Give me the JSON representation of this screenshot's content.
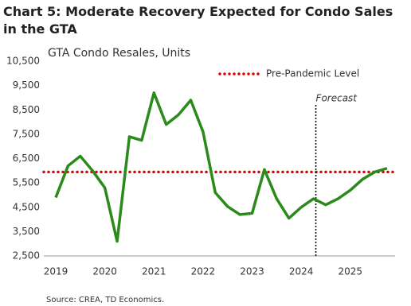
{
  "chart_data": {
    "type": "line",
    "title": "Chart 5: Moderate Recovery Expected for Condo Sales in the GTA",
    "subtitle": "GTA Condo Resales, Units",
    "source": "Source: CREA, TD Economics.",
    "categories": [
      "2019",
      null,
      null,
      null,
      "2020",
      null,
      null,
      null,
      "2021",
      null,
      null,
      null,
      "2022",
      null,
      null,
      null,
      "2023",
      null,
      null,
      null,
      "2024",
      null,
      null,
      null,
      "2025",
      null,
      null,
      null
    ],
    "series": [
      {
        "color": "#2a8a1a",
        "values": [
          4900,
          6200,
          6600,
          6000,
          5300,
          3100,
          7400,
          7250,
          9200,
          7900,
          8300,
          8900,
          7600,
          5100,
          4530,
          4200,
          4250,
          6050,
          4850,
          4050,
          4500,
          4850,
          4600,
          4850,
          5200,
          5650,
          5950,
          6100
        ]
      }
    ],
    "hline": {
      "name": "Pre-Pandemic Level",
      "value": 5950,
      "color": "#e00000"
    },
    "vline": {
      "label": "Forecast",
      "x": 21
    },
    "ylim": [
      2500,
      10500
    ],
    "yticks": [
      {
        "value": 2500,
        "label": "2,500"
      },
      {
        "value": 3500,
        "label": "3,500"
      },
      {
        "value": 4500,
        "label": "4,500"
      },
      {
        "value": 5500,
        "label": "5,500"
      },
      {
        "value": 6500,
        "label": "6,500"
      },
      {
        "value": 7500,
        "label": "7,500"
      },
      {
        "value": 8500,
        "label": "8,500"
      },
      {
        "value": 9500,
        "label": "9,500"
      },
      {
        "value": 10500,
        "label": "10,500"
      }
    ],
    "grid": false
  }
}
